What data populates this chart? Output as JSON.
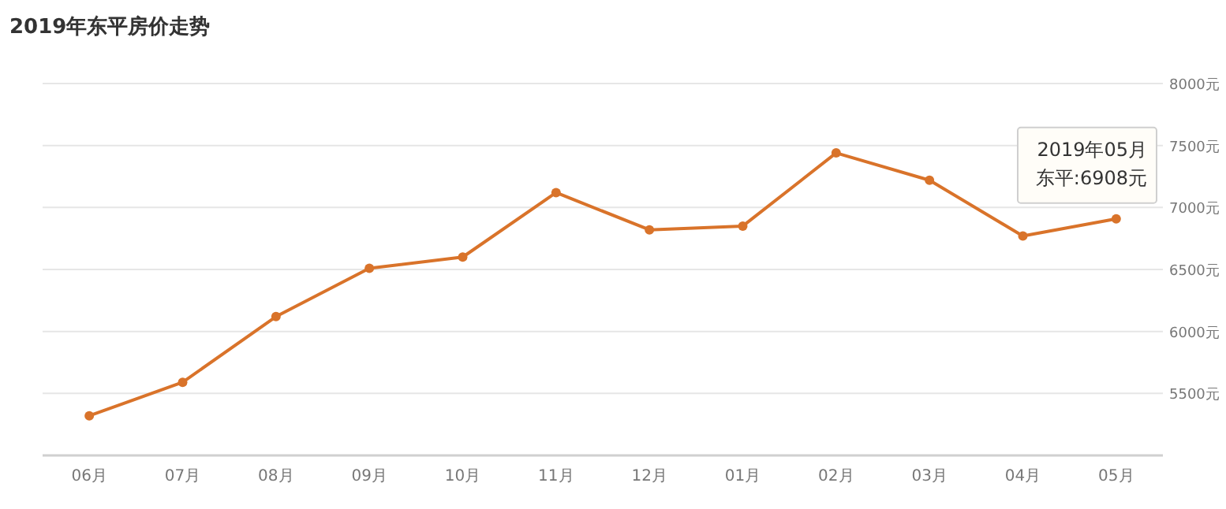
{
  "chart_data": {
    "type": "line",
    "title": "2019年东平房价走势",
    "categories": [
      "06月",
      "07月",
      "08月",
      "09月",
      "10月",
      "11月",
      "12月",
      "01月",
      "02月",
      "03月",
      "04月",
      "05月"
    ],
    "series": [
      {
        "color": "#d9732a",
        "values": [
          5320,
          5590,
          6120,
          6510,
          6600,
          7120,
          6820,
          6850,
          7440,
          7220,
          6770,
          6908
        ]
      }
    ],
    "ylim": [
      5000,
      8000
    ],
    "yticks": [
      {
        "value": 5000,
        "label": null
      },
      {
        "value": 5500,
        "label": "5500元"
      },
      {
        "value": 6000,
        "label": "6000元"
      },
      {
        "value": 6500,
        "label": "6500元"
      },
      {
        "value": 7000,
        "label": "7000元"
      },
      {
        "value": 7500,
        "label": "7500元"
      },
      {
        "value": 8000,
        "label": "8000元"
      }
    ],
    "grid": "y",
    "marker": "circle",
    "line_style": "solid",
    "annotations": [
      "2019年05月",
      "东平:6908元"
    ]
  }
}
